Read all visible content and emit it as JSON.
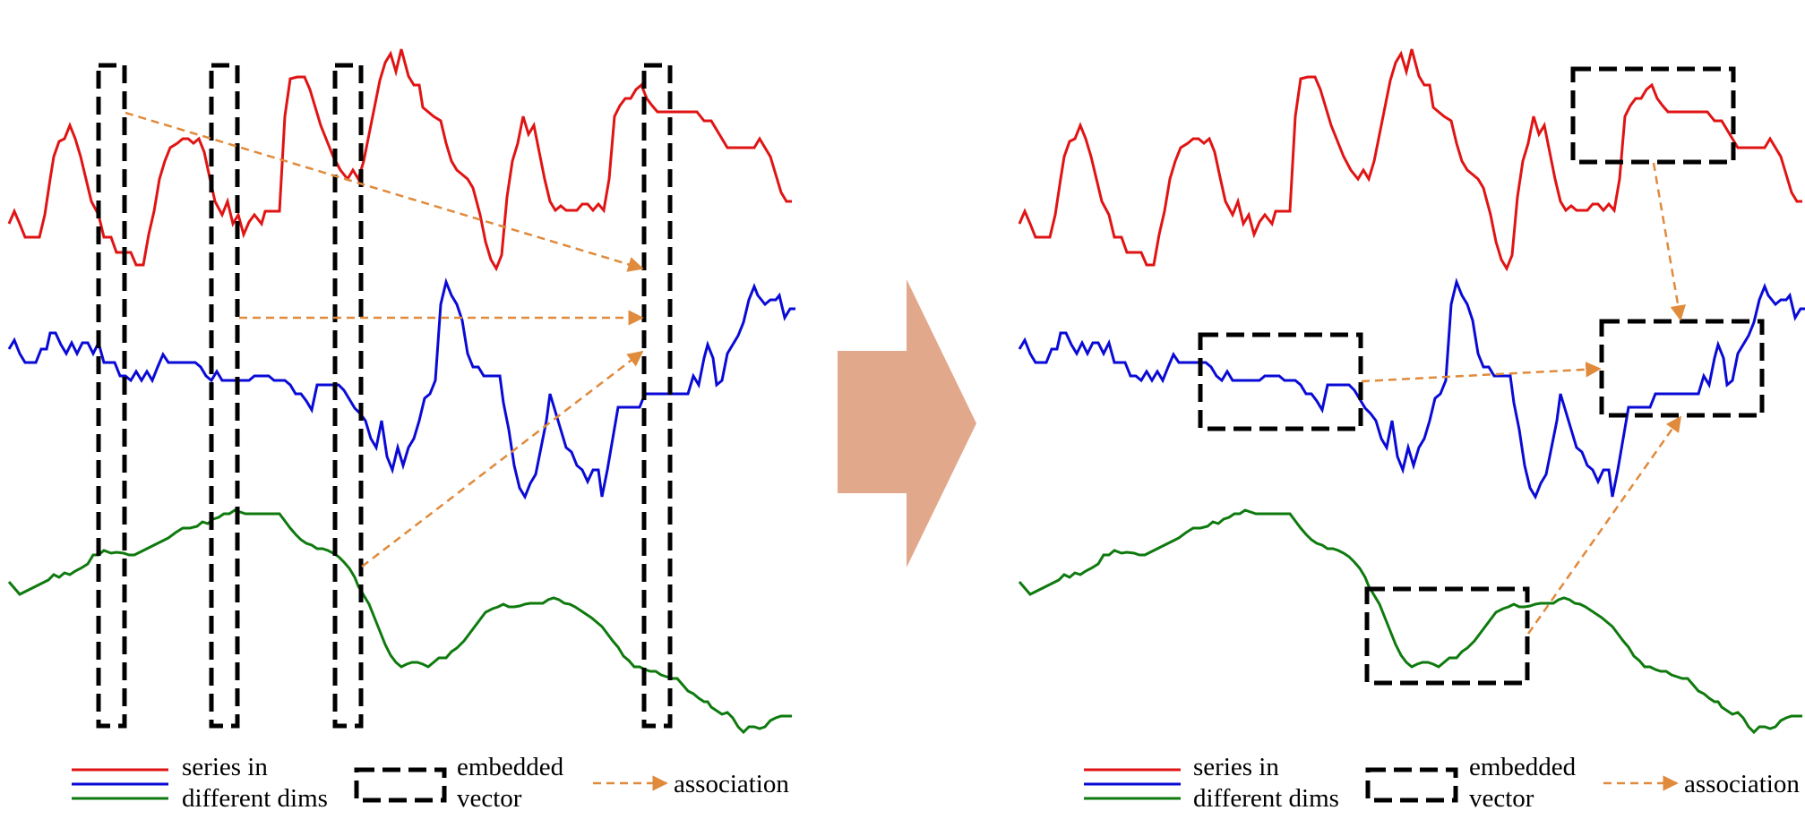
{
  "colors": {
    "series_red": "#e01414",
    "series_blue": "#0a0ad6",
    "series_green": "#0e7a0e",
    "association": "#e08a3c",
    "big_arrow": "#e2a88c",
    "box": "#000000"
  },
  "legend": {
    "series_line1": "series in",
    "series_line2": "different dims",
    "embedded_line1": "embedded",
    "embedded_line2": "vector",
    "association": "association"
  },
  "panels": {
    "left": {
      "description_icons": [
        "red-series-line",
        "blue-series-line",
        "green-series-line",
        "embedding-box",
        "association-arrow"
      ]
    },
    "right": {
      "description_icons": [
        "red-series-line",
        "blue-series-line",
        "green-series-line",
        "embedding-box",
        "association-arrow"
      ]
    }
  }
}
